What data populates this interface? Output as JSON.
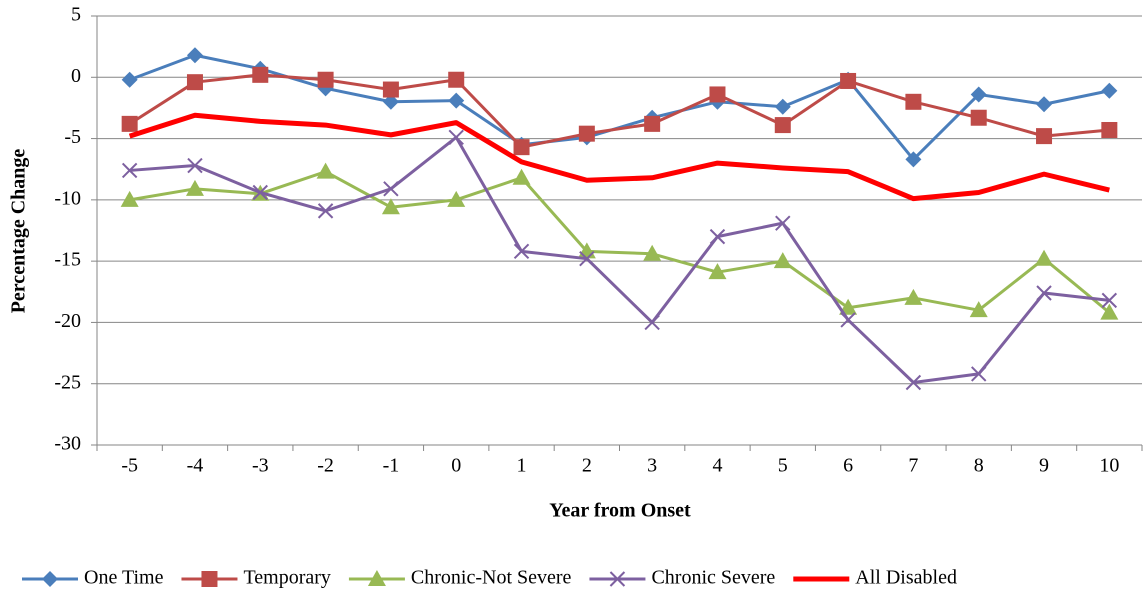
{
  "chart_data": {
    "type": "line",
    "x_label": "Year from Onset",
    "y_label": "Percentage Change",
    "categories": [
      "-5",
      "-4",
      "-3",
      "-2",
      "-1",
      "0",
      "1",
      "2",
      "3",
      "4",
      "5",
      "6",
      "7",
      "8",
      "9",
      "10"
    ],
    "ylim": [
      -30,
      5
    ],
    "yticks": [
      -30,
      -25,
      -20,
      -15,
      -10,
      -5,
      0,
      5
    ],
    "grid": true,
    "legend": "bottom",
    "series": [
      {
        "name": "One Time",
        "color": "#4a7ebb",
        "marker": "diamond",
        "values": [
          -0.2,
          1.8,
          0.7,
          -0.9,
          -2.0,
          -1.9,
          -5.5,
          -4.9,
          -3.3,
          -2.0,
          -2.4,
          -0.2,
          -6.7,
          -1.4,
          -2.2,
          -1.1
        ]
      },
      {
        "name": "Temporary",
        "color": "#be4b48",
        "marker": "square",
        "values": [
          -3.8,
          -0.4,
          0.2,
          -0.2,
          -1.0,
          -0.2,
          -5.7,
          -4.6,
          -3.8,
          -1.4,
          -3.9,
          -0.3,
          -2.0,
          -3.3,
          -4.8,
          -4.3
        ]
      },
      {
        "name": "Chronic-Not Severe",
        "color": "#98b954",
        "marker": "triangle",
        "values": [
          -10.0,
          -9.1,
          -9.5,
          -7.7,
          -10.6,
          -10.0,
          -8.2,
          -14.2,
          -14.4,
          -15.9,
          -15.0,
          -18.8,
          -18.0,
          -19.0,
          -14.8,
          -19.2
        ]
      },
      {
        "name": "Chronic Severe",
        "color": "#7d60a0",
        "marker": "x",
        "values": [
          -7.6,
          -7.2,
          -9.4,
          -10.9,
          -9.1,
          -4.9,
          -14.2,
          -14.8,
          -20.0,
          -13.0,
          -11.9,
          -19.8,
          -24.9,
          -24.2,
          -17.6,
          -18.2
        ]
      },
      {
        "name": "All Disabled",
        "color": "#ff0000",
        "marker": "none",
        "values": [
          -4.8,
          -3.1,
          -3.6,
          -3.9,
          -4.7,
          -3.7,
          -6.9,
          -8.4,
          -8.2,
          -7.0,
          -7.4,
          -7.7,
          -9.9,
          -9.4,
          -7.9,
          -9.2
        ]
      }
    ]
  }
}
